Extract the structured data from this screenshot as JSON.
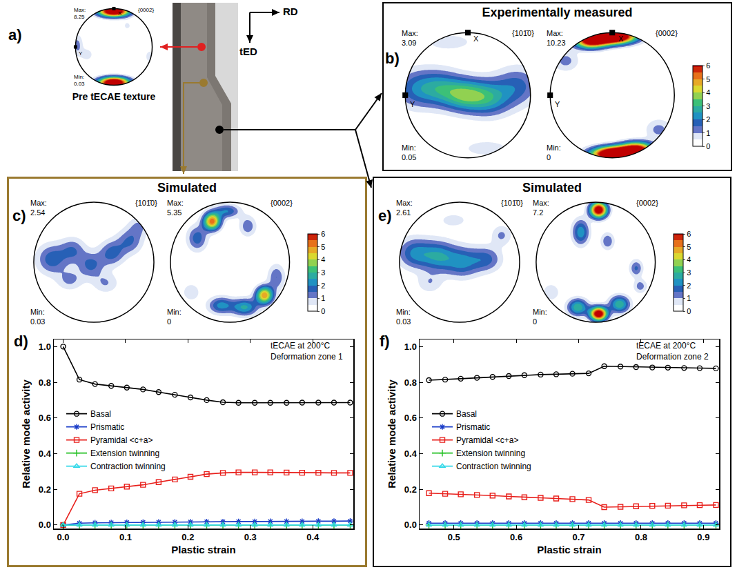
{
  "panels": [
    {
      "letter": "a)",
      "caption": "Pre tECAE texture",
      "directions": [
        "RD",
        "tED"
      ]
    },
    {
      "letter": "b)",
      "title": "Experimentally measured"
    },
    {
      "letter": "c)",
      "title": "Simulated"
    },
    {
      "letter": "d)"
    },
    {
      "letter": "e)",
      "title": "Simulated"
    },
    {
      "letter": "f)"
    }
  ],
  "chart_data": [
    {
      "type": "pole_figure",
      "title": "{0002}",
      "max_label": "Max:",
      "max": 8.25,
      "min_label": "Min:",
      "min": 0.03,
      "direction_labels": [
        "X",
        "Y"
      ],
      "zlim": [
        0,
        6
      ],
      "peaks": [
        {
          "x": 0,
          "y": 0.93,
          "width": 0.28,
          "height": 0.1,
          "intensity": 8.25
        },
        {
          "x": 0,
          "y": -0.93,
          "width": 0.28,
          "height": 0.1,
          "intensity": 8.25
        },
        {
          "x": -0.95,
          "y": 0.05,
          "width": 0.1,
          "height": 0.2,
          "intensity": 1.2
        },
        {
          "x": -0.7,
          "y": -0.2,
          "width": 0.12,
          "height": 0.12,
          "intensity": 0.8
        },
        {
          "x": 0.93,
          "y": -0.25,
          "width": 0.1,
          "height": 0.15,
          "intensity": 0.7
        },
        {
          "x": 0.35,
          "y": 0.55,
          "width": 0.1,
          "height": 0.1,
          "intensity": 0.6
        }
      ]
    },
    {
      "type": "pole_figure",
      "title": "{101̄0}",
      "max_label": "Max:",
      "max": 3.09,
      "min_label": "Min:",
      "min": 0.05,
      "direction_labels": [
        "X",
        "Y"
      ],
      "zlim": [
        0,
        6
      ],
      "peaks": [
        {
          "x": -0.85,
          "y": 0.1,
          "width": 0.25,
          "height": 0.22,
          "intensity": 1.6
        },
        {
          "x": -0.45,
          "y": 0.12,
          "width": 0.25,
          "height": 0.2,
          "intensity": 2.0
        },
        {
          "x": -0.05,
          "y": 0.0,
          "width": 0.25,
          "height": 0.18,
          "intensity": 2.9
        },
        {
          "x": 0.35,
          "y": -0.05,
          "width": 0.25,
          "height": 0.2,
          "intensity": 2.2
        },
        {
          "x": 0.8,
          "y": 0.15,
          "width": 0.25,
          "height": 0.22,
          "intensity": 1.6
        },
        {
          "x": -0.3,
          "y": 0.85,
          "width": 0.35,
          "height": 0.12,
          "intensity": 0.7
        },
        {
          "x": 0.3,
          "y": -0.85,
          "width": 0.35,
          "height": 0.12,
          "intensity": 0.7
        }
      ]
    },
    {
      "type": "pole_figure",
      "title": "{0002}",
      "max_label": "Max:",
      "max": 10.23,
      "min_label": "Min:",
      "min": 0,
      "direction_labels": [
        "X",
        "Y"
      ],
      "zlim": [
        0,
        6
      ],
      "zticks": [
        0,
        1,
        2,
        3,
        4,
        5,
        6
      ],
      "peaks": [
        {
          "x": 0.0,
          "y": 0.94,
          "width": 0.25,
          "height": 0.08,
          "intensity": 10.23
        },
        {
          "x": -0.35,
          "y": 0.86,
          "width": 0.18,
          "height": 0.08,
          "intensity": 6
        },
        {
          "x": -0.75,
          "y": 0.55,
          "width": 0.15,
          "height": 0.12,
          "intensity": 1.2
        },
        {
          "x": 0.05,
          "y": -0.94,
          "width": 0.25,
          "height": 0.08,
          "intensity": 10.23
        },
        {
          "x": 0.4,
          "y": -0.86,
          "width": 0.18,
          "height": 0.08,
          "intensity": 6
        },
        {
          "x": 0.75,
          "y": -0.55,
          "width": 0.15,
          "height": 0.12,
          "intensity": 1.2
        }
      ]
    },
    {
      "type": "pole_figure",
      "title": "{101̄0}",
      "max_label": "Max:",
      "max": 2.54,
      "min_label": "Min:",
      "min": 0.03,
      "zlim": [
        0,
        6
      ],
      "peaks": [
        {
          "x": -0.7,
          "y": 0.05,
          "width": 0.18,
          "height": 0.18,
          "intensity": 1.8
        },
        {
          "x": -0.35,
          "y": 0.2,
          "width": 0.15,
          "height": 0.15,
          "intensity": 1.4
        },
        {
          "x": -0.05,
          "y": -0.05,
          "width": 0.15,
          "height": 0.15,
          "intensity": 1.6
        },
        {
          "x": 0.3,
          "y": 0.15,
          "width": 0.15,
          "height": 0.15,
          "intensity": 1.7
        },
        {
          "x": 0.6,
          "y": 0.35,
          "width": 0.15,
          "height": 0.15,
          "intensity": 1.5
        },
        {
          "x": -0.4,
          "y": -0.3,
          "width": 0.15,
          "height": 0.12,
          "intensity": 1.1
        },
        {
          "x": 0.2,
          "y": -0.35,
          "width": 0.15,
          "height": 0.12,
          "intensity": 1.0
        },
        {
          "x": 0.75,
          "y": 0.6,
          "width": 0.12,
          "height": 0.12,
          "intensity": 1.0
        }
      ]
    },
    {
      "type": "pole_figure",
      "title": "{0002}",
      "max_label": "Max:",
      "max": 5.35,
      "min_label": "Min:",
      "min": 0,
      "zlim": [
        0,
        6
      ],
      "zticks": [
        0,
        1,
        2,
        3,
        4,
        5,
        6
      ],
      "peaks": [
        {
          "x": -0.3,
          "y": 0.68,
          "width": 0.1,
          "height": 0.1,
          "intensity": 5.35
        },
        {
          "x": -0.55,
          "y": 0.4,
          "width": 0.12,
          "height": 0.15,
          "intensity": 1.8
        },
        {
          "x": -0.05,
          "y": 0.85,
          "width": 0.15,
          "height": 0.08,
          "intensity": 2
        },
        {
          "x": 0.3,
          "y": 0.6,
          "width": 0.1,
          "height": 0.12,
          "intensity": 1.4
        },
        {
          "x": 0.58,
          "y": -0.55,
          "width": 0.1,
          "height": 0.1,
          "intensity": 5
        },
        {
          "x": 0.25,
          "y": -0.75,
          "width": 0.15,
          "height": 0.1,
          "intensity": 2.6
        },
        {
          "x": -0.15,
          "y": -0.72,
          "width": 0.15,
          "height": 0.1,
          "intensity": 2.2
        },
        {
          "x": 0.78,
          "y": -0.25,
          "width": 0.1,
          "height": 0.15,
          "intensity": 1.5
        },
        {
          "x": -0.65,
          "y": -0.5,
          "width": 0.1,
          "height": 0.1,
          "intensity": 1.0
        }
      ]
    },
    {
      "type": "line",
      "xlabel": "Plastic strain",
      "ylabel": "Relative mode activity",
      "annotations": [
        "tECAE at 200°C",
        "Deformation zone 1"
      ],
      "x": [
        0,
        0.026,
        0.051,
        0.077,
        0.102,
        0.128,
        0.153,
        0.179,
        0.204,
        0.23,
        0.256,
        0.281,
        0.307,
        0.332,
        0.358,
        0.383,
        0.409,
        0.434,
        0.46
      ],
      "xlim": [
        -0.015,
        0.465
      ],
      "xticks": [
        {
          "value": 0,
          "label": "0.0"
        },
        0.1,
        0.2,
        0.3,
        0.4
      ],
      "ylim": [
        -0.02,
        1.04
      ],
      "yticks": [
        {
          "value": 0,
          "label": "0.0"
        },
        0.2,
        0.4,
        0.6,
        0.8,
        {
          "value": 1,
          "label": "1.0"
        }
      ],
      "legend": "left",
      "series": [
        {
          "name": "Basal",
          "color": "#000000",
          "marker": "circle-open",
          "values": [
            1.0,
            0.815,
            0.79,
            0.78,
            0.77,
            0.76,
            0.745,
            0.73,
            0.715,
            0.7,
            0.688,
            0.685,
            0.685,
            0.685,
            0.685,
            0.686,
            0.686,
            0.686,
            0.686
          ]
        },
        {
          "name": "Prismatic",
          "color": "#1a3cc8",
          "marker": "asterisk-open",
          "values": [
            0,
            0.01,
            0.012,
            0.013,
            0.014,
            0.015,
            0.016,
            0.016,
            0.017,
            0.018,
            0.018,
            0.019,
            0.019,
            0.02,
            0.02,
            0.02,
            0.021,
            0.021,
            0.022
          ]
        },
        {
          "name": "Pyramidal <c+a>",
          "color": "#e8201c",
          "marker": "square-open",
          "values": [
            0,
            0.175,
            0.195,
            0.205,
            0.215,
            0.225,
            0.24,
            0.255,
            0.27,
            0.285,
            0.292,
            0.295,
            0.295,
            0.295,
            0.294,
            0.293,
            0.293,
            0.292,
            0.292
          ]
        },
        {
          "name": "Extension twinning",
          "color": "#22c022",
          "marker": "cross-thin-open",
          "values": [
            0,
            0,
            0,
            0,
            0,
            0,
            0,
            0,
            0,
            0,
            0,
            0,
            0,
            0,
            0,
            0,
            0,
            0,
            0
          ]
        },
        {
          "name": "Contraction twinning",
          "color": "#30d8e8",
          "marker": "triangle-up-open",
          "values": [
            0,
            0,
            0,
            0,
            0,
            0,
            0,
            0,
            0,
            0,
            0,
            0,
            0,
            0,
            0,
            0,
            0,
            0,
            0
          ]
        }
      ]
    },
    {
      "type": "pole_figure",
      "title": "{101̄0}",
      "max_label": "Max:",
      "max": 2.61,
      "min_label": "Min:",
      "min": 0.03,
      "zlim": [
        0,
        6
      ],
      "peaks": [
        {
          "x": -0.75,
          "y": 0.15,
          "width": 0.2,
          "height": 0.18,
          "intensity": 2.0
        },
        {
          "x": -0.35,
          "y": 0.1,
          "width": 0.2,
          "height": 0.18,
          "intensity": 2.2
        },
        {
          "x": 0.05,
          "y": 0.0,
          "width": 0.2,
          "height": 0.18,
          "intensity": 2.0
        },
        {
          "x": 0.45,
          "y": 0.05,
          "width": 0.18,
          "height": 0.15,
          "intensity": 1.6
        },
        {
          "x": 0.7,
          "y": 0.45,
          "width": 0.12,
          "height": 0.12,
          "intensity": 1.1
        },
        {
          "x": -0.5,
          "y": -0.35,
          "width": 0.15,
          "height": 0.12,
          "intensity": 0.9
        },
        {
          "x": -0.1,
          "y": 0.7,
          "width": 0.2,
          "height": 0.1,
          "intensity": 0.7
        }
      ]
    },
    {
      "type": "pole_figure",
      "title": "{0002}",
      "max_label": "Max:",
      "max": 7.2,
      "min_label": "Min:",
      "min": 0,
      "zlim": [
        0,
        6
      ],
      "zticks": [
        0,
        1,
        2,
        3,
        4,
        5,
        6
      ],
      "peaks": [
        {
          "x": 0.05,
          "y": 0.87,
          "width": 0.1,
          "height": 0.09,
          "intensity": 7.2
        },
        {
          "x": -0.25,
          "y": 0.5,
          "width": 0.1,
          "height": 0.15,
          "intensity": 2.4
        },
        {
          "x": 0.2,
          "y": 0.35,
          "width": 0.08,
          "height": 0.1,
          "intensity": 1.5
        },
        {
          "x": 0.05,
          "y": -0.86,
          "width": 0.1,
          "height": 0.08,
          "intensity": 7.2
        },
        {
          "x": -0.3,
          "y": -0.75,
          "width": 0.12,
          "height": 0.1,
          "intensity": 3
        },
        {
          "x": 0.4,
          "y": -0.7,
          "width": 0.12,
          "height": 0.1,
          "intensity": 3
        },
        {
          "x": 0.68,
          "y": -0.1,
          "width": 0.08,
          "height": 0.1,
          "intensity": 1.6
        },
        {
          "x": -0.75,
          "y": -0.5,
          "width": 0.1,
          "height": 0.1,
          "intensity": 1.0
        },
        {
          "x": 0.75,
          "y": -0.4,
          "width": 0.08,
          "height": 0.08,
          "intensity": 1.3
        }
      ]
    },
    {
      "type": "line",
      "xlabel": "Plastic strain",
      "ylabel": "Relative mode activity",
      "annotations": [
        "tECAE at 200°C",
        "Deformation zone 2"
      ],
      "x": [
        0.46,
        0.486,
        0.511,
        0.537,
        0.562,
        0.588,
        0.613,
        0.639,
        0.664,
        0.69,
        0.716,
        0.741,
        0.767,
        0.792,
        0.818,
        0.843,
        0.869,
        0.894,
        0.92
      ],
      "xlim": [
        0.445,
        0.925
      ],
      "xticks": [
        0.5,
        0.6,
        0.7,
        0.8,
        0.9
      ],
      "ylim": [
        -0.02,
        1.04
      ],
      "yticks": [
        {
          "value": 0,
          "label": "0.0"
        },
        0.2,
        0.4,
        0.6,
        0.8,
        {
          "value": 1,
          "label": "1.0"
        }
      ],
      "legend": "left",
      "series": [
        {
          "name": "Basal",
          "color": "#000000",
          "marker": "circle-open",
          "values": [
            0.812,
            0.815,
            0.82,
            0.825,
            0.83,
            0.835,
            0.84,
            0.843,
            0.845,
            0.848,
            0.85,
            0.89,
            0.888,
            0.885,
            0.883,
            0.882,
            0.88,
            0.879,
            0.878
          ]
        },
        {
          "name": "Prismatic",
          "color": "#1a3cc8",
          "marker": "asterisk-open",
          "values": [
            0.01,
            0.01,
            0.01,
            0.01,
            0.01,
            0.01,
            0.01,
            0.01,
            0.01,
            0.01,
            0.01,
            0.01,
            0.01,
            0.01,
            0.01,
            0.01,
            0.01,
            0.01,
            0.01
          ]
        },
        {
          "name": "Pyramidal <c+a>",
          "color": "#e8201c",
          "marker": "square-open",
          "values": [
            0.178,
            0.175,
            0.172,
            0.168,
            0.165,
            0.16,
            0.155,
            0.152,
            0.148,
            0.145,
            0.14,
            0.1,
            0.102,
            0.105,
            0.107,
            0.108,
            0.11,
            0.111,
            0.112
          ]
        },
        {
          "name": "Extension twinning",
          "color": "#22c022",
          "marker": "cross-thin-open",
          "values": [
            0,
            0,
            0,
            0,
            0,
            0,
            0,
            0,
            0,
            0,
            0,
            0,
            0,
            0,
            0,
            0,
            0,
            0,
            0
          ]
        },
        {
          "name": "Contraction twinning",
          "color": "#30d8e8",
          "marker": "triangle-up-open",
          "values": [
            0,
            0,
            0,
            0,
            0,
            0,
            0,
            0,
            0,
            0,
            0,
            0,
            0,
            0,
            0,
            0,
            0,
            0,
            0
          ]
        }
      ]
    }
  ]
}
